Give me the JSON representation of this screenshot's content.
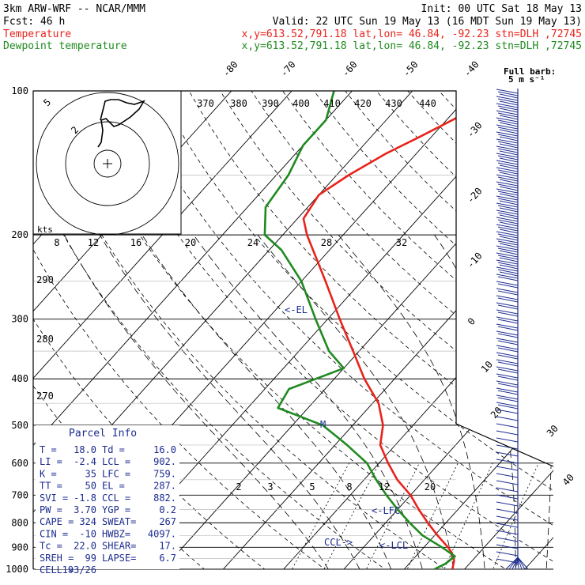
{
  "header": {
    "model": "3km ARW-WRF -- NCAR/MMM",
    "init": "Init: 00 UTC Sat 18 May 13",
    "fcst": "Fcst:   46 h",
    "valid": "Valid: 22 UTC Sun 19 May 13 (16 MDT Sun 19 May 13)",
    "temp_name": "Temperature",
    "temp_loc": "x,y=613.52,791.18   lat,lon= 46.84, -92.23   stn=DLH ,72745",
    "dew_name": "Dewpoint temperature",
    "dew_loc": "x,y=613.52,791.18   lat,lon= 46.84, -92.23   stn=DLH ,72745"
  },
  "colors": {
    "temperature": "#e8231c",
    "dewpoint": "#1f8a1f",
    "parcel": "#1c2b8f"
  },
  "chart_data": {
    "type": "line",
    "y_axis": {
      "scale": "log-pressure",
      "ticks": [
        100,
        200,
        300,
        400,
        500,
        600,
        700,
        800,
        900,
        1000
      ],
      "range": [
        100,
        1000
      ]
    },
    "isotherm_labels": [
      "-80",
      "-70",
      "-60",
      "-50",
      "-40",
      "-30",
      "-20",
      "-10",
      "0",
      "10",
      "20",
      "30",
      "40"
    ],
    "theta_labels": [
      "370",
      "380",
      "390",
      "400",
      "410",
      "420",
      "430",
      "440"
    ],
    "theta_left_labels": [
      "290",
      "280",
      "270"
    ],
    "mixing_ratio_labels": [
      "2",
      "3",
      "5",
      "8",
      "12",
      "20"
    ],
    "hodo_speed_labels": [
      "8",
      "12",
      "16",
      "20",
      "24",
      "28",
      "32"
    ],
    "hodo_ring_labels": [
      "5",
      "2"
    ],
    "hodo_units": "kts",
    "series": [
      {
        "name": "Temperature",
        "points": [
          [
            1000,
            18
          ],
          [
            960,
            17
          ],
          [
            925,
            15.5
          ],
          [
            900,
            14
          ],
          [
            850,
            10.5
          ],
          [
            800,
            7
          ],
          [
            750,
            3.5
          ],
          [
            700,
            0
          ],
          [
            650,
            -4.5
          ],
          [
            600,
            -8.5
          ],
          [
            550,
            -12.5
          ],
          [
            500,
            -15
          ],
          [
            450,
            -19
          ],
          [
            400,
            -25
          ],
          [
            350,
            -31
          ],
          [
            300,
            -38
          ],
          [
            250,
            -46
          ],
          [
            200,
            -56
          ],
          [
            185,
            -59
          ],
          [
            165,
            -60
          ],
          [
            150,
            -58
          ],
          [
            135,
            -55
          ],
          [
            125,
            -52
          ],
          [
            115,
            -49
          ],
          [
            105,
            -46
          ],
          [
            100,
            -45
          ]
        ]
      },
      {
        "name": "Dewpoint temperature",
        "points": [
          [
            1000,
            15
          ],
          [
            975,
            16
          ],
          [
            940,
            16.5
          ],
          [
            900,
            13
          ],
          [
            850,
            8
          ],
          [
            800,
            4
          ],
          [
            750,
            0
          ],
          [
            700,
            -4
          ],
          [
            650,
            -8
          ],
          [
            600,
            -12
          ],
          [
            550,
            -18
          ],
          [
            500,
            -25
          ],
          [
            460,
            -35
          ],
          [
            420,
            -36
          ],
          [
            380,
            -30
          ],
          [
            350,
            -35
          ],
          [
            300,
            -42
          ],
          [
            250,
            -50
          ],
          [
            215,
            -58
          ],
          [
            200,
            -63
          ],
          [
            175,
            -67
          ],
          [
            150,
            -68
          ],
          [
            130,
            -70
          ],
          [
            115,
            -70
          ],
          [
            100,
            -73
          ]
        ]
      }
    ],
    "markers": [
      "<-EL",
      "<-LFC",
      "<-LCL",
      "CCL->",
      "M"
    ]
  },
  "parcel_info": {
    "title": "Parcel Info",
    "rows": [
      [
        "T  =",
        "18.0",
        "Td =",
        "16.0"
      ],
      [
        "LI =",
        "-2.4",
        "LCL =",
        "902."
      ],
      [
        "K  =",
        "35",
        "LFC =",
        "759."
      ],
      [
        "TT =",
        "50",
        "EL =",
        "287."
      ],
      [
        "SVI =",
        "-1.8",
        "CCL =",
        "882."
      ],
      [
        "PW =",
        "3.70",
        "YGP =",
        "0.2"
      ],
      [
        "CAPE =",
        "324",
        "SWEAT=",
        "267"
      ],
      [
        "CIN =",
        "-10",
        "HWBZ=",
        "4097."
      ],
      [
        "Tc =",
        "22.0",
        "SHEAR=",
        "17."
      ],
      [
        "SREH =",
        "99",
        "LAPSE=",
        "6.7"
      ],
      [
        "CELL =",
        "193/26",
        "",
        ""
      ]
    ]
  },
  "wind_key": {
    "line1": "Full barb:",
    "line2": "5 m s⁻¹"
  }
}
